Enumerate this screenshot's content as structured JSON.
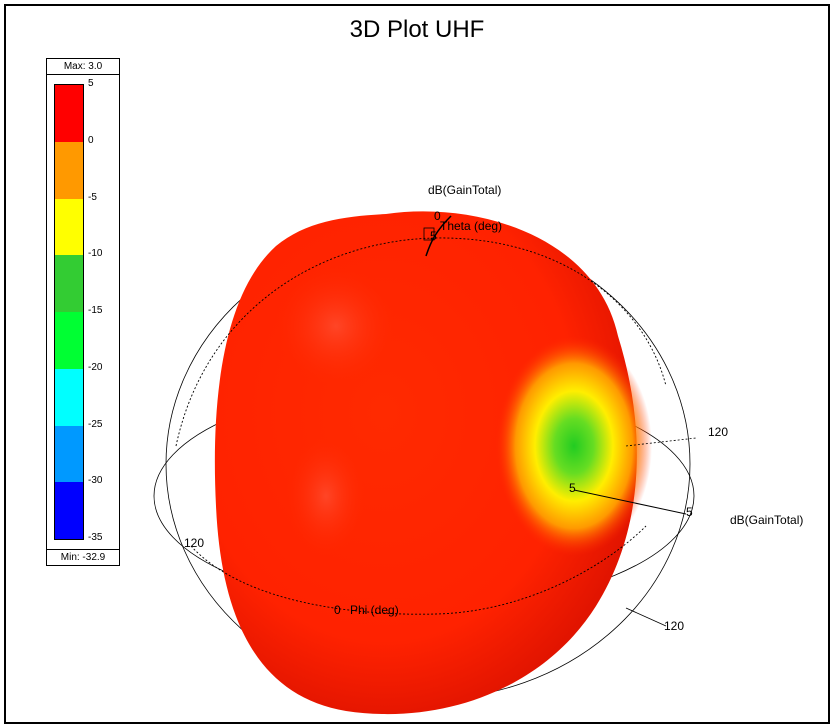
{
  "chart_data": {
    "type": "other",
    "title": "3D Plot UHF",
    "quantity": "dB(GainTotal)",
    "colorbar": {
      "max_label": "Max: 3.0",
      "min_label": "Min: -32.9",
      "ticks": [
        5,
        0,
        -5,
        -10,
        -15,
        -20,
        -25,
        -30,
        -35
      ],
      "bands": [
        {
          "from": 5,
          "to": 0,
          "color": "#ff0000"
        },
        {
          "from": 0,
          "to": -5,
          "color": "#ff9900"
        },
        {
          "from": -5,
          "to": -10,
          "color": "#ffff00"
        },
        {
          "from": -10,
          "to": -15,
          "color": "#33cc33"
        },
        {
          "from": -15,
          "to": -20,
          "color": "#00ff33"
        },
        {
          "from": -20,
          "to": -25,
          "color": "#00ffff"
        },
        {
          "from": -25,
          "to": -30,
          "color": "#0099ff"
        },
        {
          "from": -30,
          "to": -35,
          "color": "#0000ff"
        }
      ]
    },
    "axes_labels": {
      "theta_axis": "Theta (deg)",
      "phi_axis": "Phi (deg)",
      "gain_axis_top": "dB(GainTotal)",
      "gain_axis_right": "dB(GainTotal)",
      "theta_zero": "0",
      "phi_zero": "0",
      "gain_tick_top": "5",
      "gain_tick_center": "5",
      "gain_tick_right": "5",
      "ring_tick_right_upper": "120",
      "ring_tick_left": "120",
      "ring_tick_right_lower": "120"
    },
    "colors": {
      "pattern_main": "#ff2a00",
      "pattern_dark": "#e81500",
      "null_region": "#33cc33",
      "transition": "#ffcc00"
    }
  }
}
